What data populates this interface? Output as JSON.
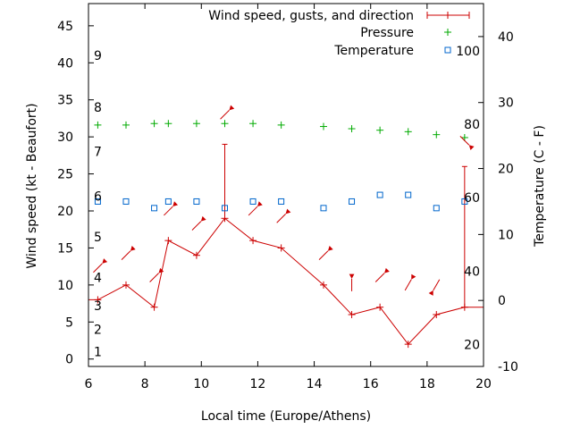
{
  "chart_data": {
    "type": "line",
    "xlabel": "Local time (Europe/Athens)",
    "ylabel": "Wind speed (kt - Beaufort)",
    "y2label": "Temperature (C - F)",
    "xlim": [
      6,
      20
    ],
    "ylim": [
      -1,
      48
    ],
    "y2lim": [
      -10,
      45
    ],
    "x_ticks": [
      "6",
      "8",
      "10",
      "12",
      "14",
      "16",
      "18",
      "20"
    ],
    "y_ticks": [
      "0",
      "5",
      "10",
      "15",
      "20",
      "25",
      "30",
      "35",
      "40",
      "45"
    ],
    "y2_ticks": [
      "-10",
      "0",
      "10",
      "20",
      "30",
      "40"
    ],
    "beaufort_labels": [
      {
        "text": "1",
        "y": 1
      },
      {
        "text": "2",
        "y": 4
      },
      {
        "text": "3",
        "y": 7.2
      },
      {
        "text": "4",
        "y": 11
      },
      {
        "text": "5",
        "y": 16.5
      },
      {
        "text": "6",
        "y": 22
      },
      {
        "text": "7",
        "y": 28
      },
      {
        "text": "8",
        "y": 34
      },
      {
        "text": "9",
        "y": 41
      }
    ],
    "fahrenheit_labels": [
      {
        "text": "20",
        "y2": -6.7
      },
      {
        "text": "40",
        "y2": 4.4
      },
      {
        "text": "60",
        "y2": 15.6
      },
      {
        "text": "80",
        "y2": 26.7
      },
      {
        "text": "100",
        "y2": 37.8
      }
    ],
    "legend_position": "top-right",
    "series": [
      {
        "name": "Wind speed, gusts, and direction",
        "color": "#cc0000",
        "x": [
          6,
          6.33,
          7.33,
          8.33,
          8.83,
          9.83,
          10.83,
          11.83,
          12.83,
          14.33,
          15.33,
          16.33,
          17.33,
          18.33,
          19.33,
          20
        ],
        "values": [
          8,
          8,
          10,
          7,
          16,
          14,
          19,
          16,
          15,
          10,
          6,
          7,
          2,
          6,
          7,
          7
        ],
        "gusts": [
          {
            "x": 10.83,
            "low": 19,
            "high": 29
          },
          {
            "x": 19.33,
            "low": 7,
            "high": 26
          }
        ]
      },
      {
        "name": "Pressure",
        "color": "#00aa00",
        "marker": "+",
        "x": [
          6.33,
          7.33,
          8.33,
          8.83,
          9.83,
          10.83,
          11.83,
          12.83,
          14.33,
          15.33,
          16.33,
          17.33,
          18.33,
          19.33
        ],
        "values": [
          31.6,
          31.6,
          31.8,
          31.8,
          31.8,
          31.8,
          31.8,
          31.6,
          31.4,
          31.1,
          30.9,
          30.7,
          30.3,
          29.9
        ]
      },
      {
        "name": "Temperature",
        "color": "#0066cc",
        "marker": "square",
        "axis": "y2",
        "x": [
          6.33,
          7.33,
          8.33,
          8.83,
          9.83,
          10.83,
          11.83,
          12.83,
          14.33,
          15.33,
          16.33,
          17.33,
          18.33,
          19.33
        ],
        "values": [
          15,
          15,
          14,
          15,
          15,
          14,
          15,
          15,
          14,
          15,
          16,
          16,
          14,
          15
        ]
      }
    ],
    "wind_arrows": {
      "color": "#cc0000",
      "x": [
        6.33,
        7.33,
        8.33,
        8.83,
        9.83,
        10.83,
        11.83,
        12.83,
        14.33,
        15.33,
        16.33,
        17.33,
        18.33,
        19.33
      ],
      "y": [
        12.3,
        14,
        11,
        20,
        18,
        33,
        20,
        19,
        14,
        10,
        11,
        10,
        10,
        29.5
      ],
      "direction_deg": [
        135,
        135,
        135,
        135,
        135,
        135,
        135,
        135,
        135,
        90,
        135,
        120,
        300,
        225
      ]
    }
  }
}
